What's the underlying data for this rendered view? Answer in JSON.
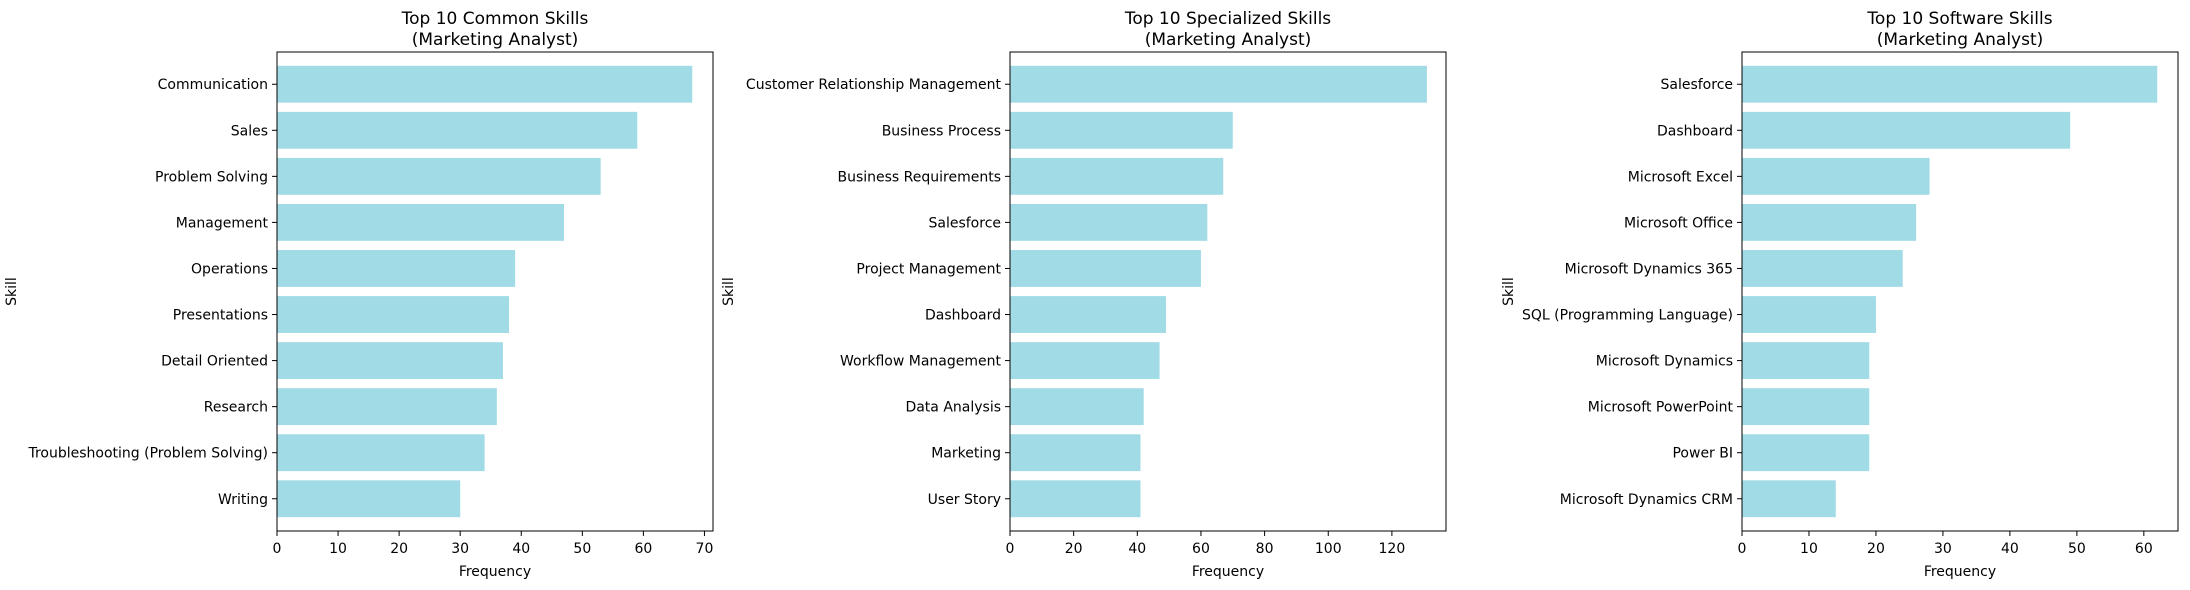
{
  "chart_data": [
    {
      "type": "bar",
      "orientation": "horizontal",
      "title": [
        "Top 10 Common Skills",
        "(Marketing Analyst)"
      ],
      "xlabel": "Frequency",
      "ylabel": "Skill",
      "xlim": [
        0,
        71.4
      ],
      "xticks": [
        0,
        10,
        20,
        30,
        40,
        50,
        60,
        70
      ],
      "bar_color": "#a0dbe6",
      "categories": [
        "Communication",
        "Sales",
        "Problem Solving",
        "Management",
        "Operations",
        "Presentations",
        "Detail Oriented",
        "Research",
        "Troubleshooting (Problem Solving)",
        "Writing"
      ],
      "values": [
        68,
        59,
        53,
        47,
        39,
        38,
        37,
        36,
        34,
        30
      ]
    },
    {
      "type": "bar",
      "orientation": "horizontal",
      "title": [
        "Top 10 Specialized Skills",
        "(Marketing Analyst)"
      ],
      "xlabel": "Frequency",
      "ylabel": "Skill",
      "xlim": [
        0,
        137
      ],
      "xticks": [
        0,
        20,
        40,
        60,
        80,
        100,
        120
      ],
      "bar_color": "#a0dbe6",
      "categories": [
        "Customer Relationship Management",
        "Business Process",
        "Business Requirements",
        "Salesforce",
        "Project Management",
        "Dashboard",
        "Workflow Management",
        "Data Analysis",
        "Marketing",
        "User Story"
      ],
      "values": [
        131,
        70,
        67,
        62,
        60,
        49,
        47,
        42,
        41,
        41
      ]
    },
    {
      "type": "bar",
      "orientation": "horizontal",
      "title": [
        "Top 10 Software Skills",
        "(Marketing Analyst)"
      ],
      "xlabel": "Frequency",
      "ylabel": "Skill",
      "xlim": [
        0,
        65.1
      ],
      "xticks": [
        0,
        10,
        20,
        30,
        40,
        50,
        60
      ],
      "bar_color": "#a0dbe6",
      "categories": [
        "Salesforce",
        "Dashboard",
        "Microsoft Excel",
        "Microsoft Office",
        "Microsoft Dynamics 365",
        "SQL (Programming Language)",
        "Microsoft Dynamics",
        "Microsoft PowerPoint",
        "Power BI",
        "Microsoft Dynamics CRM"
      ],
      "values": [
        62,
        49,
        28,
        26,
        24,
        20,
        19,
        19,
        19,
        14
      ]
    }
  ]
}
